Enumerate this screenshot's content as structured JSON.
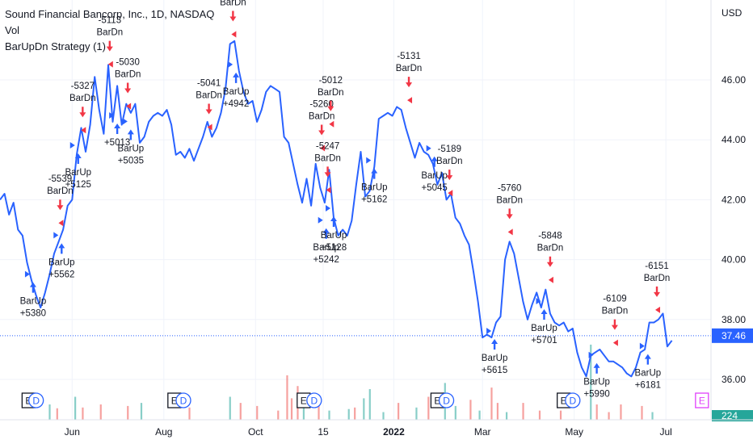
{
  "legend": {
    "title": "Sound Financial Bancorp, Inc., 1D, NASDAQ",
    "volume": "Vol",
    "strategy": "BarUpDn Strategy (1)"
  },
  "currency": "USD",
  "last_price": "37.46",
  "volume_value": "224",
  "colors": {
    "line": "#2962ff",
    "buy": "#2962ff",
    "sell": "#f23645",
    "vol_up": "#26a69a",
    "vol_down": "#ef5350",
    "last_price_bg": "#2962ff",
    "volume_badge": "#26a69a",
    "earnings_border": "#131722",
    "dividend": "#2962ff",
    "future_earnings": "#e040fb"
  },
  "chart_data": {
    "type": "line",
    "ylim": [
      35.6,
      48.3
    ],
    "y_ticks": [
      "36.00",
      "38.00",
      "40.00",
      "42.00",
      "44.00",
      "46.00"
    ],
    "x_labels": [
      "Jun",
      "Aug",
      "Oct",
      "15",
      "2022",
      "Mar",
      "May",
      "Jul"
    ],
    "year_label": "2022",
    "x_range": [
      "2021-04-14",
      "2022-07-31"
    ],
    "series": [
      {
        "points": [
          [
            "2021-04-14",
            42.0
          ],
          [
            "2021-04-17",
            42.2
          ],
          [
            "2021-04-20",
            41.5
          ],
          [
            "2021-04-23",
            41.9
          ],
          [
            "2021-04-26",
            41.0
          ],
          [
            "2021-04-29",
            40.8
          ],
          [
            "2021-05-02",
            39.9
          ],
          [
            "2021-05-05",
            39.3
          ],
          [
            "2021-05-08",
            38.8
          ],
          [
            "2021-05-11",
            38.4
          ],
          [
            "2021-05-14",
            38.9
          ],
          [
            "2021-05-17",
            39.5
          ],
          [
            "2021-05-20",
            40.2
          ],
          [
            "2021-05-23",
            40.6
          ],
          [
            "2021-05-26",
            41.0
          ],
          [
            "2021-05-29",
            41.8
          ],
          [
            "2021-06-01",
            42.0
          ],
          [
            "2021-06-04",
            43.5
          ],
          [
            "2021-06-07",
            44.4
          ],
          [
            "2021-06-10",
            43.6
          ],
          [
            "2021-06-13",
            44.5
          ],
          [
            "2021-06-16",
            46.1
          ],
          [
            "2021-06-19",
            45.0
          ],
          [
            "2021-06-22",
            44.2
          ],
          [
            "2021-06-25",
            46.5
          ],
          [
            "2021-06-28",
            44.6
          ],
          [
            "2021-07-01",
            45.8
          ],
          [
            "2021-07-04",
            44.5
          ],
          [
            "2021-07-07",
            45.2
          ],
          [
            "2021-07-10",
            44.9
          ],
          [
            "2021-07-13",
            45.2
          ],
          [
            "2021-07-16",
            43.9
          ],
          [
            "2021-07-19",
            44.1
          ],
          [
            "2021-07-22",
            44.6
          ],
          [
            "2021-07-25",
            44.8
          ],
          [
            "2021-07-28",
            44.9
          ],
          [
            "2021-07-31",
            44.8
          ],
          [
            "2021-08-03",
            45.0
          ],
          [
            "2021-08-06",
            44.5
          ],
          [
            "2021-08-09",
            43.5
          ],
          [
            "2021-08-12",
            43.6
          ],
          [
            "2021-08-15",
            43.4
          ],
          [
            "2021-08-18",
            43.7
          ],
          [
            "2021-08-21",
            43.3
          ],
          [
            "2021-08-24",
            43.7
          ],
          [
            "2021-08-27",
            44.1
          ],
          [
            "2021-08-30",
            44.6
          ],
          [
            "2021-09-02",
            44.1
          ],
          [
            "2021-09-05",
            44.4
          ],
          [
            "2021-09-08",
            44.9
          ],
          [
            "2021-09-11",
            45.7
          ],
          [
            "2021-09-14",
            47.2
          ],
          [
            "2021-09-17",
            47.3
          ],
          [
            "2021-09-20",
            46.3
          ],
          [
            "2021-09-23",
            45.6
          ],
          [
            "2021-09-26",
            45.2
          ],
          [
            "2021-09-29",
            45.3
          ],
          [
            "2021-10-02",
            44.6
          ],
          [
            "2021-10-05",
            45.0
          ],
          [
            "2021-10-08",
            45.6
          ],
          [
            "2021-10-11",
            45.8
          ],
          [
            "2021-10-14",
            45.7
          ],
          [
            "2021-10-17",
            45.6
          ],
          [
            "2021-10-20",
            44.1
          ],
          [
            "2021-10-23",
            43.9
          ],
          [
            "2021-10-26",
            43.2
          ],
          [
            "2021-10-29",
            42.5
          ],
          [
            "2021-11-01",
            41.9
          ],
          [
            "2021-11-04",
            42.7
          ],
          [
            "2021-11-07",
            41.8
          ],
          [
            "2021-11-10",
            43.2
          ],
          [
            "2021-11-13",
            42.4
          ],
          [
            "2021-11-16",
            41.9
          ],
          [
            "2021-11-19",
            43.0
          ],
          [
            "2021-11-22",
            41.4
          ],
          [
            "2021-11-25",
            40.8
          ],
          [
            "2021-11-28",
            41.0
          ],
          [
            "2021-12-01",
            40.8
          ],
          [
            "2021-12-04",
            41.3
          ],
          [
            "2021-12-07",
            42.5
          ],
          [
            "2021-12-10",
            43.6
          ],
          [
            "2021-12-13",
            42.1
          ],
          [
            "2021-12-16",
            42.3
          ],
          [
            "2021-12-19",
            43.1
          ],
          [
            "2021-12-22",
            44.7
          ],
          [
            "2021-12-25",
            44.8
          ],
          [
            "2021-12-28",
            44.9
          ],
          [
            "2021-12-31",
            44.8
          ],
          [
            "2022-01-03",
            45.1
          ],
          [
            "2022-01-06",
            45.0
          ],
          [
            "2022-01-09",
            44.4
          ],
          [
            "2022-01-12",
            43.9
          ],
          [
            "2022-01-15",
            43.4
          ],
          [
            "2022-01-18",
            43.9
          ],
          [
            "2022-01-21",
            43.6
          ],
          [
            "2022-01-24",
            43.5
          ],
          [
            "2022-01-27",
            43.2
          ],
          [
            "2022-01-30",
            42.5
          ],
          [
            "2022-02-02",
            42.9
          ],
          [
            "2022-02-05",
            42.0
          ],
          [
            "2022-02-08",
            42.2
          ],
          [
            "2022-02-11",
            41.4
          ],
          [
            "2022-02-14",
            41.2
          ],
          [
            "2022-02-17",
            40.8
          ],
          [
            "2022-02-20",
            40.5
          ],
          [
            "2022-02-23",
            39.6
          ],
          [
            "2022-02-26",
            38.6
          ],
          [
            "2022-03-01",
            37.4
          ],
          [
            "2022-03-04",
            37.5
          ],
          [
            "2022-03-07",
            37.4
          ],
          [
            "2022-03-10",
            37.9
          ],
          [
            "2022-03-13",
            38.1
          ],
          [
            "2022-03-16",
            40.0
          ],
          [
            "2022-03-19",
            40.6
          ],
          [
            "2022-03-22",
            40.2
          ],
          [
            "2022-03-25",
            39.4
          ],
          [
            "2022-03-28",
            38.6
          ],
          [
            "2022-03-31",
            38.0
          ],
          [
            "2022-04-03",
            38.5
          ],
          [
            "2022-04-06",
            38.9
          ],
          [
            "2022-04-09",
            38.4
          ],
          [
            "2022-04-12",
            39.0
          ],
          [
            "2022-04-15",
            38.2
          ],
          [
            "2022-04-18",
            37.9
          ],
          [
            "2022-04-21",
            37.8
          ],
          [
            "2022-04-24",
            37.9
          ],
          [
            "2022-04-27",
            37.6
          ],
          [
            "2022-04-30",
            37.7
          ],
          [
            "2022-05-03",
            36.9
          ],
          [
            "2022-05-06",
            36.4
          ],
          [
            "2022-05-09",
            36.1
          ],
          [
            "2022-05-12",
            36.8
          ],
          [
            "2022-05-15",
            36.9
          ],
          [
            "2022-05-18",
            37.0
          ],
          [
            "2022-05-21",
            36.8
          ],
          [
            "2022-05-24",
            36.6
          ],
          [
            "2022-05-27",
            36.6
          ],
          [
            "2022-05-30",
            36.5
          ],
          [
            "2022-06-02",
            36.4
          ],
          [
            "2022-06-05",
            36.2
          ],
          [
            "2022-06-08",
            36.1
          ],
          [
            "2022-06-11",
            36.4
          ],
          [
            "2022-06-14",
            36.9
          ],
          [
            "2022-06-17",
            37.0
          ],
          [
            "2022-06-20",
            37.9
          ],
          [
            "2022-06-23",
            37.9
          ],
          [
            "2022-06-26",
            38.0
          ],
          [
            "2022-06-29",
            38.2
          ],
          [
            "2022-07-02",
            37.1
          ],
          [
            "2022-07-05",
            37.3
          ]
        ]
      }
    ],
    "buy_signals": [
      {
        "date": "2021-05-06",
        "price": 39.3,
        "lines": [
          "BarUp",
          "+5380"
        ]
      },
      {
        "date": "2021-05-25",
        "price": 40.6,
        "lines": [
          "BarUp",
          "+5562"
        ]
      },
      {
        "date": "2021-06-05",
        "price": 43.6,
        "lines": [
          "BarUp",
          "+5125"
        ]
      },
      {
        "date": "2021-07-10",
        "price": 44.4,
        "lines": [
          "BarUp",
          "+5035"
        ]
      },
      {
        "date": "2021-07-01",
        "price": 44.6,
        "lines": [
          "+5013"
        ]
      },
      {
        "date": "2021-09-18",
        "price": 46.3,
        "lines": [
          "BarUp",
          "+4942"
        ]
      },
      {
        "date": "2021-11-17",
        "price": 41.1,
        "lines": [
          "BarUp",
          "+5242"
        ]
      },
      {
        "date": "2021-11-22",
        "price": 41.5,
        "lines": [
          "BarUp",
          "+5128"
        ]
      },
      {
        "date": "2021-12-19",
        "price": 43.1,
        "lines": [
          "BarUp",
          "+5162"
        ]
      },
      {
        "date": "2022-01-28",
        "price": 43.5,
        "lines": [
          "BarUp",
          "+5045"
        ]
      },
      {
        "date": "2022-03-09",
        "price": 37.4,
        "lines": [
          "BarUp",
          "+5615"
        ]
      },
      {
        "date": "2022-04-11",
        "price": 38.4,
        "lines": [
          "BarUp",
          "+5701"
        ]
      },
      {
        "date": "2022-05-16",
        "price": 36.6,
        "lines": [
          "BarUp",
          "+5990"
        ]
      },
      {
        "date": "2022-06-19",
        "price": 36.9,
        "lines": [
          "BarUp",
          "+6181"
        ]
      }
    ],
    "sell_signals": [
      {
        "date": "2021-05-24",
        "price": 41.6,
        "lines": [
          "-5539",
          "BarDn"
        ]
      },
      {
        "date": "2021-06-08",
        "price": 44.7,
        "lines": [
          "-5327",
          "BarDn"
        ]
      },
      {
        "date": "2021-06-26",
        "price": 46.9,
        "lines": [
          "-5113",
          "BarDn"
        ]
      },
      {
        "date": "2021-07-08",
        "price": 45.5,
        "lines": [
          "-5030",
          "BarDn"
        ]
      },
      {
        "date": "2021-08-31",
        "price": 44.8,
        "lines": [
          "-5041",
          "BarDn"
        ]
      },
      {
        "date": "2021-09-16",
        "price": 47.9,
        "lines": [
          "BarDn"
        ]
      },
      {
        "date": "2021-11-14",
        "price": 44.1,
        "lines": [
          "-5260",
          "BarDn"
        ]
      },
      {
        "date": "2021-11-20",
        "price": 44.9,
        "lines": [
          "-5012",
          "BarDn"
        ]
      },
      {
        "date": "2021-11-18",
        "price": 42.7,
        "lines": [
          "-5247",
          "BarDn"
        ]
      },
      {
        "date": "2022-01-11",
        "price": 45.7,
        "lines": [
          "-5131",
          "BarDn"
        ]
      },
      {
        "date": "2022-02-07",
        "price": 42.6,
        "lines": [
          "-5189",
          "BarDn"
        ]
      },
      {
        "date": "2022-03-19",
        "price": 41.3,
        "lines": [
          "-5760",
          "BarDn"
        ]
      },
      {
        "date": "2022-04-15",
        "price": 39.7,
        "lines": [
          "-5848",
          "BarDn"
        ]
      },
      {
        "date": "2022-05-28",
        "price": 37.6,
        "lines": [
          "-6109",
          "BarDn"
        ]
      },
      {
        "date": "2022-06-25",
        "price": 38.7,
        "lines": [
          "-6151",
          "BarDn"
        ]
      }
    ],
    "volume": [
      {
        "date": "2021-05-17",
        "value": 20,
        "up": true
      },
      {
        "date": "2021-05-22",
        "value": 15,
        "up": false
      },
      {
        "date": "2021-06-03",
        "value": 30,
        "up": true
      },
      {
        "date": "2021-06-08",
        "value": 16,
        "up": false
      },
      {
        "date": "2021-06-20",
        "value": 20,
        "up": false
      },
      {
        "date": "2021-07-08",
        "value": 18,
        "up": false
      },
      {
        "date": "2021-07-17",
        "value": 22,
        "up": true
      },
      {
        "date": "2021-08-18",
        "value": 16,
        "up": false
      },
      {
        "date": "2021-09-14",
        "value": 30,
        "up": true
      },
      {
        "date": "2021-09-21",
        "value": 22,
        "up": false
      },
      {
        "date": "2021-10-02",
        "value": 18,
        "up": false
      },
      {
        "date": "2021-10-16",
        "value": 12,
        "up": false
      },
      {
        "date": "2021-10-22",
        "value": 58,
        "up": false
      },
      {
        "date": "2021-10-25",
        "value": 28,
        "up": false
      },
      {
        "date": "2021-10-29",
        "value": 44,
        "up": false
      },
      {
        "date": "2021-11-02",
        "value": 22,
        "up": true
      },
      {
        "date": "2021-11-12",
        "value": 28,
        "up": false
      },
      {
        "date": "2021-11-19",
        "value": 12,
        "up": true
      },
      {
        "date": "2021-12-02",
        "value": 14,
        "up": true
      },
      {
        "date": "2021-12-06",
        "value": 16,
        "up": false
      },
      {
        "date": "2021-12-12",
        "value": 28,
        "up": true
      },
      {
        "date": "2021-12-16",
        "value": 40,
        "up": true
      },
      {
        "date": "2021-12-25",
        "value": 10,
        "up": true
      },
      {
        "date": "2022-01-04",
        "value": 22,
        "up": false
      },
      {
        "date": "2022-01-16",
        "value": 16,
        "up": true
      },
      {
        "date": "2022-01-24",
        "value": 30,
        "up": false
      },
      {
        "date": "2022-02-04",
        "value": 48,
        "up": true
      },
      {
        "date": "2022-02-11",
        "value": 18,
        "up": true
      },
      {
        "date": "2022-02-21",
        "value": 26,
        "up": false
      },
      {
        "date": "2022-02-27",
        "value": 12,
        "up": true
      },
      {
        "date": "2022-03-07",
        "value": 42,
        "up": false
      },
      {
        "date": "2022-03-11",
        "value": 22,
        "up": false
      },
      {
        "date": "2022-03-17",
        "value": 10,
        "up": true
      },
      {
        "date": "2022-03-28",
        "value": 22,
        "up": false
      },
      {
        "date": "2022-04-08",
        "value": 12,
        "up": false
      },
      {
        "date": "2022-04-22",
        "value": 12,
        "up": false
      },
      {
        "date": "2022-05-12",
        "value": 98,
        "up": true
      },
      {
        "date": "2022-05-16",
        "value": 20,
        "up": false
      },
      {
        "date": "2022-05-24",
        "value": 10,
        "up": false
      },
      {
        "date": "2022-06-01",
        "value": 20,
        "up": false
      },
      {
        "date": "2022-06-15",
        "value": 18,
        "up": false
      },
      {
        "date": "2022-06-22",
        "value": 10,
        "up": true
      }
    ],
    "event_markers": [
      {
        "date": "2021-05-03",
        "kind": "E"
      },
      {
        "date": "2021-05-08",
        "kind": "D"
      },
      {
        "date": "2021-08-08",
        "kind": "E"
      },
      {
        "date": "2021-08-14",
        "kind": "D"
      },
      {
        "date": "2021-11-02",
        "kind": "E"
      },
      {
        "date": "2021-11-09",
        "kind": "D"
      },
      {
        "date": "2022-01-30",
        "kind": "E"
      },
      {
        "date": "2022-02-05",
        "kind": "D"
      },
      {
        "date": "2022-04-24",
        "kind": "E"
      },
      {
        "date": "2022-04-30",
        "kind": "D"
      },
      {
        "date": "2022-07-25",
        "kind": "E",
        "future": true
      }
    ]
  }
}
